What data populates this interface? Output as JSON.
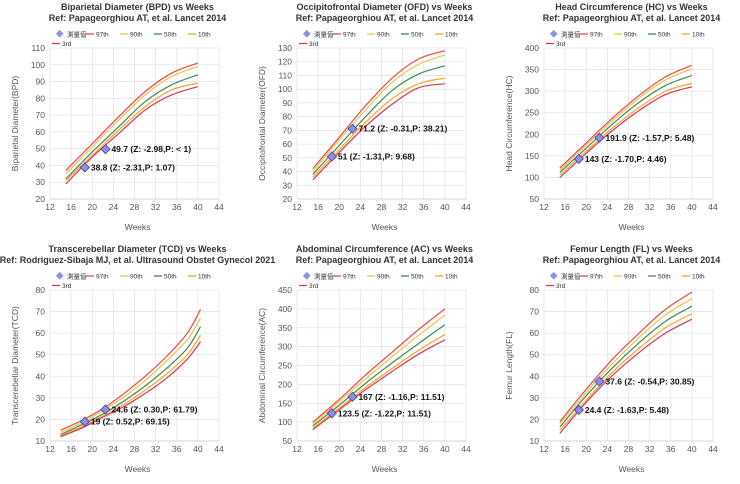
{
  "legend": {
    "measured_label": "測量值",
    "series_names": [
      "97th",
      "90th",
      "50th",
      "10th",
      "3rd"
    ],
    "series_colors": [
      "#e84a4a",
      "#f2c14a",
      "#3d8a5a",
      "#f5a623",
      "#d9365a"
    ],
    "marker_color": "#8f8fe6"
  },
  "chart_data": [
    {
      "type": "line",
      "title": "Biparietal Diameter (BPD) vs Weeks",
      "subtitle": "Ref: Papageorghiou AT, et al. Lancet 2014",
      "xlabel": "Weeks",
      "ylabel": "Biparietal Diameter(BPD)",
      "xlim": [
        12,
        44
      ],
      "ylim": [
        20,
        110
      ],
      "xticks": [
        12,
        16,
        20,
        24,
        28,
        32,
        36,
        40,
        44
      ],
      "yticks": [
        20,
        30,
        40,
        50,
        60,
        70,
        80,
        90,
        100,
        110
      ],
      "x": [
        15,
        20,
        25,
        30,
        35,
        40
      ],
      "series": [
        {
          "name": "97th",
          "values": [
            37,
            53,
            69,
            84,
            95,
            101
          ]
        },
        {
          "name": "90th",
          "values": [
            35,
            51,
            67,
            82,
            93,
            99
          ]
        },
        {
          "name": "50th",
          "values": [
            32,
            48,
            63,
            78,
            88,
            94
          ]
        },
        {
          "name": "10th",
          "values": [
            31,
            46,
            61,
            75,
            85,
            89
          ]
        },
        {
          "name": "3rd",
          "values": [
            29,
            45,
            59,
            73,
            82,
            87
          ]
        }
      ],
      "points": [
        {
          "x": 18.6,
          "y": 38.8,
          "label": "38.8 (Z: -2.31,P: 1.07)"
        },
        {
          "x": 22.5,
          "y": 49.7,
          "label": "49.7 (Z: -2.98,P: < 1)"
        }
      ],
      "grid": true,
      "legend_position": "top"
    },
    {
      "type": "line",
      "title": "Occipitofrontal Diameter (OFD) vs Weeks",
      "subtitle": "Ref: Papageorghiou AT, et al. Lancet 2014",
      "xlabel": "Weeks",
      "ylabel": "Occipitofrontal Diameter(OFD)",
      "xlim": [
        12,
        44
      ],
      "ylim": [
        20,
        130
      ],
      "xticks": [
        12,
        16,
        20,
        24,
        28,
        32,
        36,
        40,
        44
      ],
      "yticks": [
        20,
        30,
        40,
        50,
        60,
        70,
        80,
        90,
        100,
        110,
        120,
        130
      ],
      "x": [
        15,
        20,
        25,
        30,
        35,
        40
      ],
      "series": [
        {
          "name": "97th",
          "values": [
            42,
            65,
            88,
            108,
            122,
            128
          ]
        },
        {
          "name": "90th",
          "values": [
            40,
            63,
            85,
            105,
            118,
            125
          ]
        },
        {
          "name": "50th",
          "values": [
            38,
            59,
            80,
            99,
            111,
            117
          ]
        },
        {
          "name": "10th",
          "values": [
            36,
            56,
            76,
            93,
            104,
            108
          ]
        },
        {
          "name": "3rd",
          "values": [
            34,
            54,
            73,
            89,
            101,
            104
          ]
        }
      ],
      "points": [
        {
          "x": 18.6,
          "y": 51,
          "label": "51 (Z: -1.31,P: 9.68)"
        },
        {
          "x": 22.5,
          "y": 71.2,
          "label": "71.2 (Z: -0.31,P: 38.21)"
        }
      ],
      "grid": true,
      "legend_position": "top"
    },
    {
      "type": "line",
      "title": "Head Circumference (HC) vs Weeks",
      "subtitle": "Ref: Papageorghiou AT, et al. Lancet 2014",
      "xlabel": "Weeks",
      "ylabel": "Head Circumference(HC)",
      "xlim": [
        12,
        44
      ],
      "ylim": [
        50,
        400
      ],
      "xticks": [
        12,
        16,
        20,
        24,
        28,
        32,
        36,
        40,
        44
      ],
      "yticks": [
        50,
        100,
        150,
        200,
        250,
        300,
        350,
        400
      ],
      "x": [
        15,
        20,
        25,
        30,
        35,
        40
      ],
      "series": [
        {
          "name": "97th",
          "values": [
            122,
            180,
            238,
            290,
            333,
            360
          ]
        },
        {
          "name": "90th",
          "values": [
            118,
            175,
            232,
            284,
            326,
            352
          ]
        },
        {
          "name": "50th",
          "values": [
            112,
            168,
            224,
            274,
            313,
            336
          ]
        },
        {
          "name": "10th",
          "values": [
            106,
            161,
            215,
            262,
            300,
            318
          ]
        },
        {
          "name": "3rd",
          "values": [
            100,
            156,
            209,
            255,
            292,
            310
          ]
        }
      ],
      "points": [
        {
          "x": 18.6,
          "y": 143,
          "label": "143 (Z: -1.70,P: 4.46)"
        },
        {
          "x": 22.5,
          "y": 191.9,
          "label": "191.9 (Z: -1.57,P: 5.48)"
        }
      ],
      "grid": true,
      "legend_position": "top"
    },
    {
      "type": "line",
      "title": "Transcerebellar Diameter (TCD) vs Weeks",
      "subtitle": "Ref: Rodriguez-Sibaja MJ, et al. Ultrasound Obstet Gynecol 2021",
      "xlabel": "Weeks",
      "ylabel": "Transcerebellar Diameter(TCD)",
      "xlim": [
        12,
        44
      ],
      "ylim": [
        10,
        80
      ],
      "xticks": [
        12,
        16,
        20,
        24,
        28,
        32,
        36,
        40,
        44
      ],
      "yticks": [
        10,
        20,
        30,
        40,
        50,
        60,
        70,
        80
      ],
      "x": [
        14,
        18,
        22,
        26,
        30,
        34,
        38,
        40.5
      ],
      "series": [
        {
          "name": "97th",
          "values": [
            15,
            19.5,
            25,
            32,
            40,
            49,
            60,
            71
          ]
        },
        {
          "name": "90th",
          "values": [
            14,
            18.5,
            24,
            30.5,
            38,
            47,
            57,
            67
          ]
        },
        {
          "name": "50th",
          "values": [
            13,
            17.5,
            22.5,
            28.5,
            35.5,
            43.5,
            53,
            63
          ]
        },
        {
          "name": "10th",
          "values": [
            12.5,
            16.5,
            21.5,
            27,
            33.5,
            41,
            50,
            59
          ]
        },
        {
          "name": "3rd",
          "values": [
            12,
            16,
            21,
            26,
            32,
            39,
            48,
            56
          ]
        }
      ],
      "points": [
        {
          "x": 18.6,
          "y": 19,
          "label": "19 (Z: 0.52,P: 69.15)"
        },
        {
          "x": 22.5,
          "y": 24.6,
          "label": "24.6 (Z: 0.30,P: 61.79)"
        }
      ],
      "grid": true,
      "legend_position": "top"
    },
    {
      "type": "line",
      "title": "Abdominal Circumference (AC) vs Weeks",
      "subtitle": "Ref: Papageorghiou AT, et al. Lancet 2014",
      "xlabel": "Weeks",
      "ylabel": "Abdominal Circumference(AC)",
      "xlim": [
        12,
        44
      ],
      "ylim": [
        50,
        450
      ],
      "xticks": [
        12,
        16,
        20,
        24,
        28,
        32,
        36,
        40,
        44
      ],
      "yticks": [
        50,
        100,
        150,
        200,
        250,
        300,
        350,
        400,
        450
      ],
      "x": [
        15,
        20,
        25,
        30,
        35,
        40
      ],
      "series": [
        {
          "name": "97th",
          "values": [
            100,
            160,
            225,
            285,
            345,
            400
          ]
        },
        {
          "name": "90th",
          "values": [
            96,
            154,
            215,
            273,
            330,
            383
          ]
        },
        {
          "name": "50th",
          "values": [
            90,
            145,
            203,
            257,
            308,
            358
          ]
        },
        {
          "name": "10th",
          "values": [
            84,
            137,
            192,
            242,
            290,
            332
          ]
        },
        {
          "name": "3rd",
          "values": [
            80,
            133,
            186,
            234,
            280,
            318
          ]
        }
      ],
      "points": [
        {
          "x": 18.6,
          "y": 123.5,
          "label": "123.5 (Z: -1.22,P: 11.51)"
        },
        {
          "x": 22.5,
          "y": 167,
          "label": "167 (Z: -1.16,P: 11.51)"
        }
      ],
      "grid": true,
      "legend_position": "top"
    },
    {
      "type": "line",
      "title": "Femur Length (FL) vs Weeks",
      "subtitle": "Ref: Papageorghiou AT, et al. Lancet 2014",
      "xlabel": "Weeks",
      "ylabel": "Femur Length(FL)",
      "xlim": [
        12,
        44
      ],
      "ylim": [
        10,
        80
      ],
      "xticks": [
        12,
        16,
        20,
        24,
        28,
        32,
        36,
        40,
        44
      ],
      "yticks": [
        10,
        20,
        30,
        40,
        50,
        60,
        70,
        80
      ],
      "x": [
        15,
        20,
        25,
        30,
        35,
        40
      ],
      "series": [
        {
          "name": "97th",
          "values": [
            19,
            34,
            48,
            60,
            71,
            79
          ]
        },
        {
          "name": "90th",
          "values": [
            18,
            32.5,
            46,
            58,
            68.5,
            76
          ]
        },
        {
          "name": "50th",
          "values": [
            16.5,
            31,
            44,
            55.5,
            65.5,
            72.5
          ]
        },
        {
          "name": "10th",
          "values": [
            15,
            29,
            42,
            53,
            62.5,
            69
          ]
        },
        {
          "name": "3rd",
          "values": [
            13.5,
            28,
            40.5,
            51,
            60,
            66.5
          ]
        }
      ],
      "points": [
        {
          "x": 18.6,
          "y": 24.4,
          "label": "24.4 (Z: -1.63,P: 5.48)"
        },
        {
          "x": 22.5,
          "y": 37.6,
          "label": "37.6 (Z: -0.54,P: 30.85)"
        }
      ],
      "grid": true,
      "legend_position": "top"
    }
  ]
}
